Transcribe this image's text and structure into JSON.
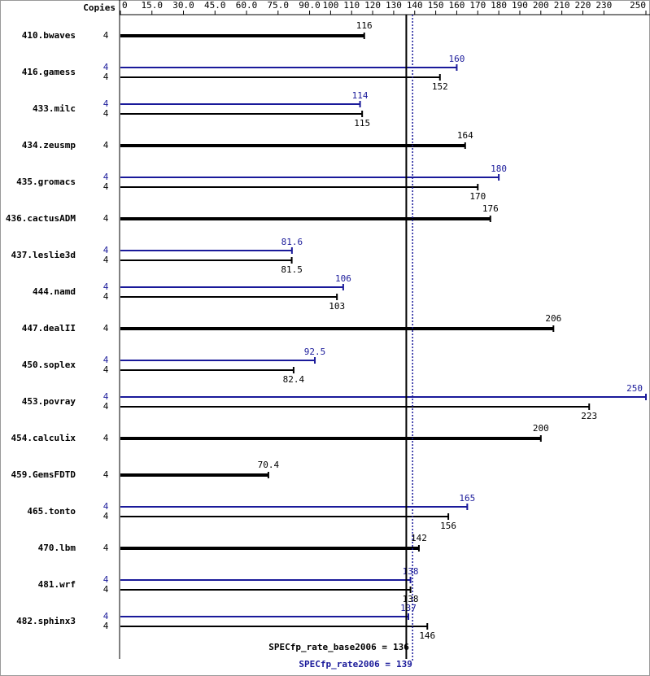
{
  "chart_data": {
    "type": "bar",
    "orientation": "horizontal",
    "copies_label": "Copies",
    "categories": [
      "410.bwaves",
      "416.gamess",
      "433.milc",
      "434.zeusmp",
      "435.gromacs",
      "436.cactusADM",
      "437.leslie3d",
      "444.namd",
      "447.dealII",
      "450.soplex",
      "453.povray",
      "454.calculix",
      "459.GemsFDTD",
      "465.tonto",
      "470.lbm",
      "481.wrf",
      "482.sphinx3"
    ],
    "series": [
      {
        "color": "#000000",
        "copies": [
          4,
          4,
          4,
          4,
          4,
          4,
          4,
          4,
          4,
          4,
          4,
          4,
          4,
          4,
          4,
          4,
          4
        ],
        "values": [
          116,
          152,
          115,
          164,
          170,
          176,
          81.5,
          103,
          206,
          82.4,
          223,
          200,
          70.4,
          156,
          142,
          138,
          146
        ]
      },
      {
        "color": "#1a1a9a",
        "copies": [
          null,
          4,
          4,
          null,
          4,
          null,
          4,
          4,
          null,
          4,
          4,
          null,
          null,
          4,
          null,
          4,
          4
        ],
        "values": [
          null,
          160,
          114,
          null,
          180,
          null,
          81.6,
          106,
          null,
          92.5,
          250,
          null,
          null,
          165,
          null,
          138,
          137
        ]
      }
    ],
    "reference_lines": [
      {
        "label": "SPECfp_rate_base2006 =",
        "value": 136,
        "color": "#000000",
        "style": "solid"
      },
      {
        "label": "SPECfp_rate2006 =",
        "value": 139,
        "color": "#1a1a9a",
        "style": "dotted"
      }
    ],
    "xlim": [
      0,
      250
    ],
    "xticks": [
      0,
      {
        "value": 15,
        "label": "15.0"
      },
      {
        "value": 30,
        "label": "30.0"
      },
      {
        "value": 45,
        "label": "45.0"
      },
      {
        "value": 60,
        "label": "60.0"
      },
      {
        "value": 75,
        "label": "75.0"
      },
      {
        "value": 90,
        "label": "90.0"
      },
      100,
      110,
      120,
      130,
      140,
      150,
      160,
      170,
      180,
      190,
      200,
      210,
      220,
      230,
      250
    ]
  }
}
